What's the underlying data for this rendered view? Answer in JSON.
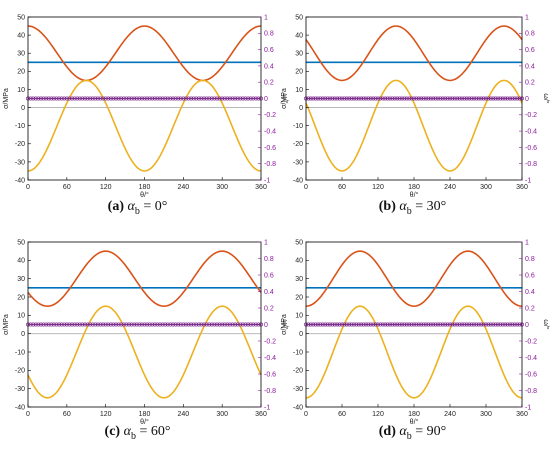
{
  "colors": {
    "axis": "#000000",
    "right_axis": "#8b1a9b",
    "zero_line": "#b0b0b0",
    "series": [
      "#0072bd",
      "#d95319",
      "#edb120",
      "#7e2f8e"
    ]
  },
  "shared": {
    "xlabel": "θ/°",
    "ylabel": "σ/MPa",
    "ylabel_right": "ω/°",
    "x_ticks": [
      "0",
      "60",
      "120",
      "180",
      "240",
      "300",
      "360"
    ],
    "y_ticks": [
      "-40",
      "-30",
      "-20",
      "-10",
      "0",
      "10",
      "20",
      "30",
      "40",
      "50"
    ],
    "y2_ticks": [
      "-1",
      "-0.8",
      "-0.6",
      "-0.4",
      "-0.2",
      "0",
      "0.2",
      "0.4",
      "0.6",
      "0.8",
      "1"
    ]
  },
  "captions": [
    {
      "label": "(a)",
      "alpha": "α",
      "sub": "b",
      "eq": " = 0°"
    },
    {
      "label": "(b)",
      "alpha": "α",
      "sub": "b",
      "eq": " = 30°"
    },
    {
      "label": "(c)",
      "alpha": "α",
      "sub": "b",
      "eq": " = 60°"
    },
    {
      "label": "(d)",
      "alpha": "α",
      "sub": "b",
      "eq": " = 90°"
    }
  ],
  "chart_data": [
    {
      "type": "line",
      "xlabel": "θ/°",
      "ylabel": "σ/MPa",
      "y2label": "ω/°",
      "xlim": [
        0,
        360
      ],
      "ylim": [
        -40,
        50
      ],
      "y2lim": [
        -1,
        1
      ],
      "x_step": 5,
      "series": [
        {
          "values_axis": "left",
          "shape": "constant",
          "value": 25
        },
        {
          "values_axis": "left",
          "shape": "max",
          "value": 15,
          "min": 15,
          "max": 45,
          "phase_deg": 0
        },
        {
          "values_axis": "left",
          "shape": "min",
          "value": 15,
          "min": -35,
          "max": 15,
          "phase_deg": 0
        },
        {
          "values_axis": "right",
          "shape": "constant",
          "value": 0,
          "markers": true
        }
      ]
    },
    {
      "type": "line",
      "xlabel": "θ/°",
      "ylabel": "σ/MPa",
      "y2label": "ω/°",
      "xlim": [
        0,
        360
      ],
      "ylim": [
        -40,
        50
      ],
      "y2lim": [
        -1,
        1
      ],
      "x_step": 5,
      "series": [
        {
          "values_axis": "left",
          "shape": "constant",
          "value": 25
        },
        {
          "values_axis": "left",
          "shape": "max",
          "min": 15,
          "max": 45,
          "phase_deg": 150
        },
        {
          "values_axis": "left",
          "shape": "min",
          "min": -35,
          "max": 15,
          "phase_deg": 60
        },
        {
          "values_axis": "right",
          "shape": "constant",
          "value": 0,
          "markers": true
        }
      ]
    },
    {
      "type": "line",
      "xlabel": "θ/°",
      "ylabel": "σ/MPa",
      "y2label": "ω/°",
      "xlim": [
        0,
        360
      ],
      "ylim": [
        -40,
        50
      ],
      "y2lim": [
        -1,
        1
      ],
      "x_step": 5,
      "series": [
        {
          "values_axis": "left",
          "shape": "constant",
          "value": 25
        },
        {
          "values_axis": "left",
          "shape": "max",
          "min": 15,
          "max": 45,
          "phase_deg": 120
        },
        {
          "values_axis": "left",
          "shape": "min",
          "min": -35,
          "max": 15,
          "phase_deg": 30
        },
        {
          "values_axis": "right",
          "shape": "constant",
          "value": 0,
          "markers": true
        }
      ]
    },
    {
      "type": "line",
      "xlabel": "θ/°",
      "ylabel": "σ/MPa",
      "y2label": "ω/°",
      "xlim": [
        0,
        360
      ],
      "ylim": [
        -40,
        50
      ],
      "y2lim": [
        -1,
        1
      ],
      "x_step": 5,
      "series": [
        {
          "values_axis": "left",
          "shape": "constant",
          "value": 25
        },
        {
          "values_axis": "left",
          "shape": "max",
          "min": 15,
          "max": 45,
          "phase_deg": 90
        },
        {
          "values_axis": "left",
          "shape": "min",
          "min": -35,
          "max": 15,
          "phase_deg": 0
        },
        {
          "values_axis": "right",
          "shape": "constant",
          "value": 0,
          "markers": true
        }
      ]
    }
  ]
}
